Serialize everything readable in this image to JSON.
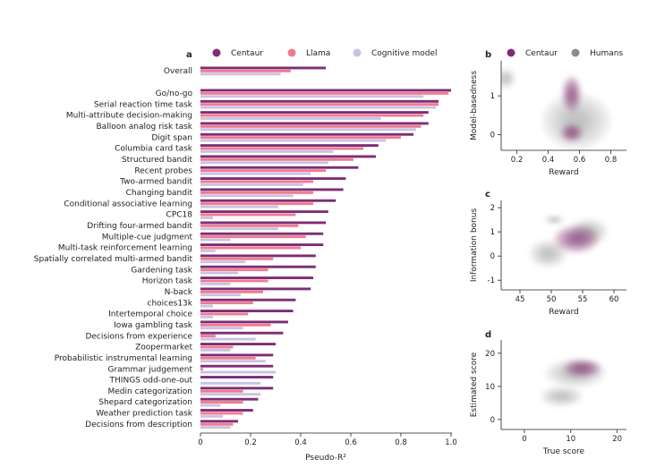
{
  "colors": {
    "centaur": "#7e2d74",
    "llama": "#f07a90",
    "cognitive": "#c9c3e2",
    "humans": "#8c8c8c"
  },
  "panels": {
    "a": "a",
    "b": "b",
    "c": "c",
    "d": "d"
  },
  "chart_data": [
    {
      "id": "a",
      "type": "bar",
      "orientation": "horizontal",
      "xlabel": "Pseudo-R²",
      "xlim": [
        0,
        1.0
      ],
      "xticks": [
        "0",
        "0.2",
        "0.4",
        "0.6",
        "0.8",
        "1.0"
      ],
      "legend": [
        "Centaur",
        "Llama",
        "Cognitive model"
      ],
      "categories": [
        "Overall",
        "Go/no-go",
        "Serial reaction time task",
        "Multi-attribute decision-making",
        "Balloon analog risk task",
        "Digit span",
        "Columbia card task",
        "Structured bandit",
        "Recent probes",
        "Two-armed bandit",
        "Changing bandit",
        "Conditional associative learning",
        "CPC18",
        "Drifting four-armed bandit",
        "Multiple-cue judgment",
        "Multi-task reinforcement learning",
        "Spatially correlated multi-armed bandit",
        "Gardening task",
        "Horizon task",
        "N-back",
        "choices13k",
        "Intertemporal choice",
        "Iowa gambling task",
        "Decisions from experience",
        "Zoopermarket",
        "Probabilistic instrumental learning",
        "Grammar judgement",
        "THINGS odd-one-out",
        "Medin categorization",
        "Shepard categorization",
        "Weather prediction task",
        "Decisions from description"
      ],
      "series": [
        {
          "name": "Centaur",
          "values": [
            0.5,
            1.0,
            0.95,
            0.91,
            0.91,
            0.85,
            0.71,
            0.7,
            0.63,
            0.58,
            0.57,
            0.54,
            0.51,
            0.5,
            0.49,
            0.49,
            0.46,
            0.46,
            0.45,
            0.44,
            0.38,
            0.37,
            0.35,
            0.33,
            0.3,
            0.29,
            0.29,
            0.29,
            0.29,
            0.23,
            0.21,
            0.15
          ]
        },
        {
          "name": "Llama",
          "values": [
            0.36,
            0.99,
            0.95,
            0.89,
            0.88,
            0.8,
            0.65,
            0.61,
            0.5,
            0.45,
            0.45,
            0.45,
            0.38,
            0.39,
            0.42,
            0.4,
            0.29,
            0.27,
            0.27,
            0.25,
            0.21,
            0.19,
            0.28,
            0.06,
            0.13,
            0.22,
            0.01,
            0.0,
            0.17,
            0.17,
            0.17,
            0.13
          ]
        },
        {
          "name": "Cognitive model",
          "values": [
            0.32,
            0.89,
            0.94,
            0.72,
            0.86,
            0.74,
            0.53,
            0.51,
            0.44,
            0.41,
            0.37,
            0.31,
            0.05,
            0.31,
            0.12,
            0.06,
            0.18,
            0.15,
            0.12,
            0.16,
            0.05,
            0.05,
            0.17,
            0.22,
            0.12,
            0.26,
            0.3,
            0.24,
            0.24,
            0.08,
            0.09,
            0.12
          ]
        }
      ]
    },
    {
      "id": "b",
      "type": "density",
      "legend": [
        "Centaur",
        "Humans"
      ],
      "xlabel": "Reward",
      "ylabel": "Model-basedness",
      "xlim": [
        0.1,
        0.9
      ],
      "ylim": [
        -0.4,
        1.9
      ],
      "xticks": [
        "0.2",
        "0.4",
        "0.6",
        "0.8"
      ],
      "yticks": [
        "0",
        "1"
      ],
      "humans_clusters": [
        [
          0.58,
          0.35,
          0.22,
          0.72
        ],
        [
          0.13,
          1.45,
          0.06,
          0.25
        ]
      ],
      "centaur_clusters": [
        [
          0.55,
          0.05,
          0.07,
          0.22
        ],
        [
          0.55,
          1.05,
          0.06,
          0.45
        ]
      ]
    },
    {
      "id": "c",
      "type": "density",
      "xlabel": "Reward",
      "ylabel": "Information bonus",
      "xlim": [
        42,
        62
      ],
      "ylim": [
        -1.4,
        2.3
      ],
      "xticks": [
        "45",
        "50",
        "55",
        "60"
      ],
      "yticks": [
        "-1",
        "0",
        "1",
        "2"
      ],
      "humans_clusters": [
        [
          49.5,
          0.1,
          3.0,
          0.55
        ],
        [
          50.5,
          1.5,
          1.5,
          0.18
        ],
        [
          56,
          1.0,
          3.0,
          0.55
        ]
      ],
      "centaur_clusters": [
        [
          54,
          0.7,
          3.5,
          0.55
        ]
      ]
    },
    {
      "id": "d",
      "type": "density",
      "xlabel": "True score",
      "ylabel": "Estimated score",
      "xlim": [
        -5,
        22
      ],
      "ylim": [
        -3,
        24
      ],
      "xticks": [
        "0",
        "10",
        "20"
      ],
      "yticks": [
        "0",
        "10",
        "20"
      ],
      "humans_clusters": [
        [
          11,
          14,
          6.5,
          4.2
        ],
        [
          8,
          7,
          4.5,
          3.0
        ]
      ],
      "centaur_clusters": [
        [
          12.5,
          15.5,
          4.0,
          2.5
        ]
      ]
    }
  ]
}
